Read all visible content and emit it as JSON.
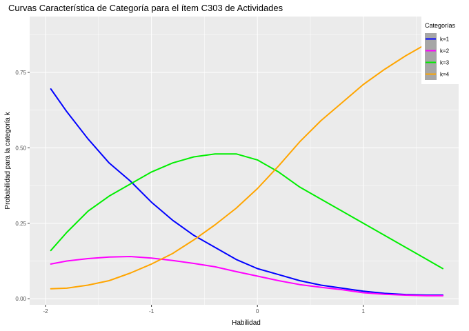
{
  "chart_data": {
    "type": "line",
    "title": "Curvas Característica de Categoría para el ítem C303 de Actividades",
    "xlabel": "Habilidad",
    "ylabel": "Probabilidad para la categoría k",
    "xlim": [
      -2.15,
      1.9
    ],
    "ylim": [
      -0.02,
      0.935
    ],
    "x_ticks": [
      -2,
      -1,
      0,
      1
    ],
    "x_tick_labels": [
      "-2",
      "-1",
      "0",
      "1"
    ],
    "y_ticks": [
      0,
      0.25,
      0.5,
      0.75
    ],
    "y_tick_labels": [
      "0.00",
      "0.25",
      "0.50",
      "0.75"
    ],
    "grid": true,
    "legend": {
      "title": "Categorías",
      "position": "top-right"
    },
    "series": [
      {
        "name": "k=1",
        "color": "#0000ff",
        "x": [
          -1.95,
          -1.8,
          -1.6,
          -1.4,
          -1.2,
          -1.0,
          -0.8,
          -0.6,
          -0.4,
          -0.2,
          0.0,
          0.2,
          0.4,
          0.6,
          0.8,
          1.0,
          1.2,
          1.4,
          1.6,
          1.75
        ],
        "y": [
          0.695,
          0.62,
          0.53,
          0.45,
          0.39,
          0.32,
          0.26,
          0.21,
          0.17,
          0.13,
          0.1,
          0.08,
          0.06,
          0.045,
          0.035,
          0.025,
          0.018,
          0.014,
          0.012,
          0.012
        ]
      },
      {
        "name": "k=2",
        "color": "#ff00ff",
        "x": [
          -1.95,
          -1.8,
          -1.6,
          -1.4,
          -1.2,
          -1.0,
          -0.8,
          -0.6,
          -0.4,
          -0.2,
          0.0,
          0.2,
          0.4,
          0.6,
          0.8,
          1.0,
          1.2,
          1.4,
          1.6,
          1.75
        ],
        "y": [
          0.115,
          0.125,
          0.133,
          0.138,
          0.14,
          0.135,
          0.127,
          0.117,
          0.106,
          0.09,
          0.075,
          0.06,
          0.047,
          0.038,
          0.03,
          0.02,
          0.015,
          0.012,
          0.01,
          0.01
        ]
      },
      {
        "name": "k=3",
        "color": "#00ee00",
        "x": [
          -1.95,
          -1.8,
          -1.6,
          -1.4,
          -1.2,
          -1.0,
          -0.8,
          -0.6,
          -0.4,
          -0.2,
          0.0,
          0.2,
          0.4,
          0.6,
          0.8,
          1.0,
          1.2,
          1.4,
          1.6,
          1.75
        ],
        "y": [
          0.16,
          0.22,
          0.29,
          0.34,
          0.38,
          0.42,
          0.45,
          0.47,
          0.48,
          0.48,
          0.46,
          0.42,
          0.37,
          0.33,
          0.29,
          0.25,
          0.21,
          0.17,
          0.13,
          0.1
        ]
      },
      {
        "name": "k=4",
        "color": "#ffa500",
        "x": [
          -1.95,
          -1.8,
          -1.6,
          -1.4,
          -1.2,
          -1.0,
          -0.8,
          -0.6,
          -0.4,
          -0.2,
          0.0,
          0.2,
          0.4,
          0.6,
          0.8,
          1.0,
          1.2,
          1.4,
          1.6,
          1.75
        ],
        "y": [
          0.033,
          0.035,
          0.045,
          0.06,
          0.085,
          0.115,
          0.15,
          0.195,
          0.245,
          0.3,
          0.365,
          0.44,
          0.52,
          0.59,
          0.65,
          0.71,
          0.76,
          0.805,
          0.845,
          0.875
        ]
      }
    ]
  }
}
